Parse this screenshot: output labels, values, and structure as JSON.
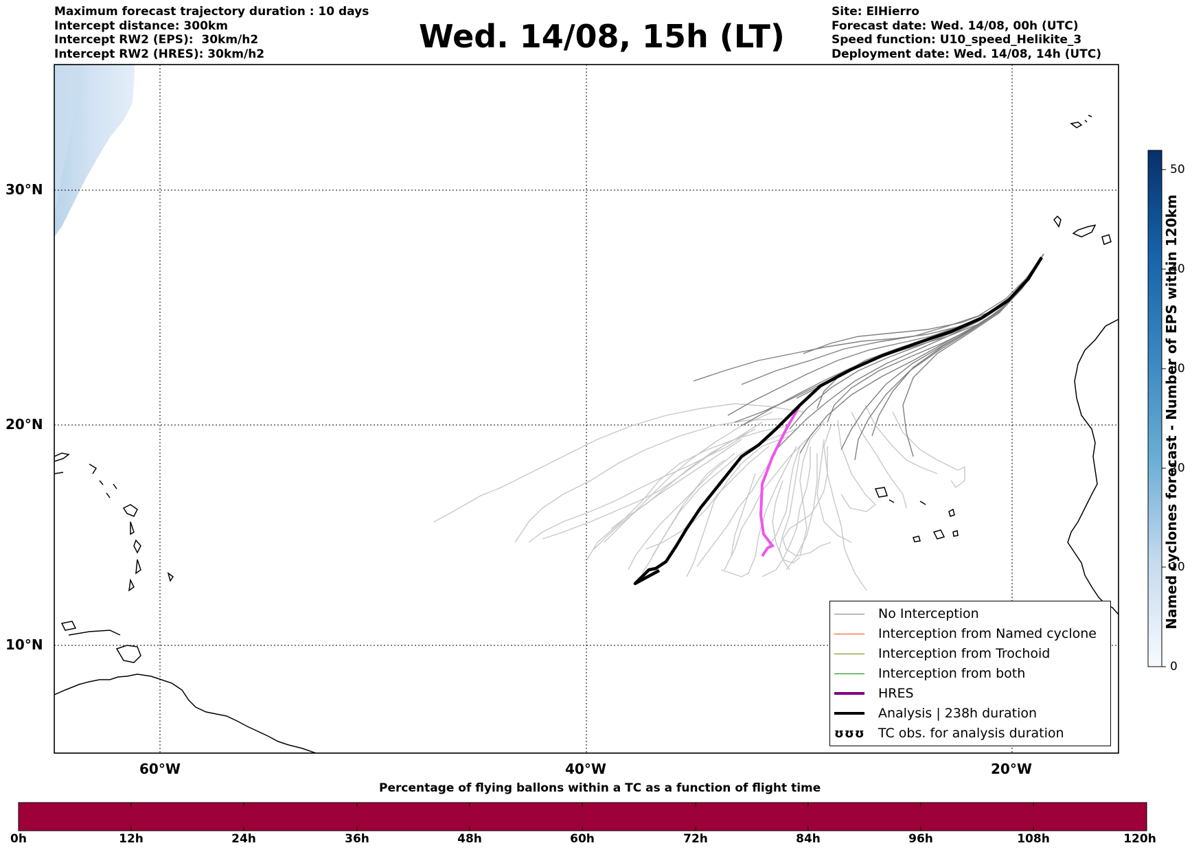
{
  "header_left": [
    "Maximum forecast trajectory duration : 10 days",
    "Intercept distance: 300km",
    "Intercept RW2 (EPS):  30km/h2",
    "Intercept RW2 (HRES): 30km/h2"
  ],
  "title": "Wed. 14/08, 15h (LT)",
  "header_right": [
    "Site: ElHierro",
    "Forecast date: Wed. 14/08, 00h (UTC)",
    "Speed function: U10_speed_Helikite_3",
    "Deployment date: Wed. 14/08, 14h (UTC)"
  ],
  "map": {
    "lat_labels": [
      "30°N",
      "20°N",
      "10°N"
    ],
    "lon_labels": [
      "60°W",
      "40°W",
      "20°W"
    ],
    "colors": {
      "no_interception": "#808080",
      "named_cyclone": "#ff4500",
      "trochoid": "#808000",
      "both": "#008000",
      "hres_legend": "#800080",
      "hres_track": "#ee55ee",
      "analysis": "#000000",
      "older_tracks": "#c8c8c8"
    }
  },
  "legend": {
    "items": [
      "No Interception",
      "Interception from Named cyclone",
      "Interception from Trochoid",
      "Interception from both",
      "HRES",
      "Analysis | 238h duration",
      "TC obs. for analysis duration"
    ],
    "tc_symbol": "ʊʊʊ"
  },
  "colorbar": {
    "label": "Named cyclones forecast - Number of EPS within 120km",
    "ticks": [
      "50",
      "40",
      "30",
      "20",
      "10",
      "0"
    ],
    "range": [
      0,
      52
    ],
    "colormap": "Blues"
  },
  "bottom_bar": {
    "title": "Percentage of flying ballons within a TC as a function of flight time",
    "ticks": [
      "0h",
      "12h",
      "24h",
      "36h",
      "48h",
      "60h",
      "72h",
      "84h",
      "96h",
      "108h",
      "120h"
    ],
    "fill_color": "#9e003a"
  }
}
